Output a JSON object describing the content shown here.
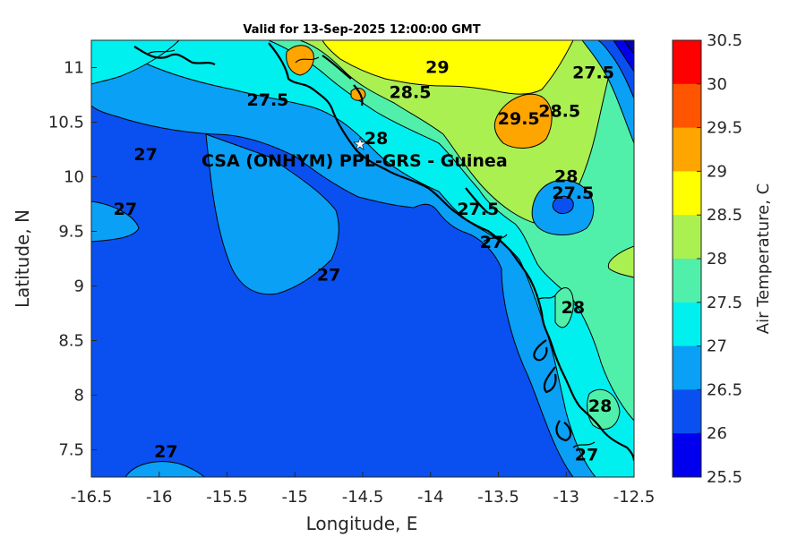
{
  "title": "Valid for 13-Sep-2025 12:00:00 GMT",
  "xlabel": "Longitude, E",
  "ylabel": "Latitude, N",
  "colorbar_label": "Air Temperature, C",
  "station_label": "CSA (ONHYM) PPL-GRS  - Guinea",
  "colors": {
    "c25_5": "#0000AA",
    "c26": "#0000EE",
    "c26_5": "#0A50F0",
    "c27": "#0AA0F5",
    "c27_5": "#00F0F0",
    "c28": "#50F0AA",
    "c28_5": "#AAF050",
    "c29": "#FFFF00",
    "c29_5": "#FFA500",
    "c30": "#FF5500",
    "c30_5": "#FF0000",
    "coast": "#000000"
  },
  "chart_data": {
    "type": "heatmap",
    "xlim": [
      -16.5,
      -12.5
    ],
    "ylim": [
      7.25,
      11.25
    ],
    "x_ticks": [
      "-16.5",
      "-16",
      "-15.5",
      "-15",
      "-14.5",
      "-14",
      "-13.5",
      "-13",
      "-12.5"
    ],
    "y_ticks": [
      "11",
      "10.5",
      "10",
      "9.5",
      "9",
      "8.5",
      "8",
      "7.5"
    ],
    "colorbar_levels": [
      "30.5",
      "30",
      "29.5",
      "29",
      "28.5",
      "28",
      "27.5",
      "27",
      "26.5",
      "26",
      "25.5"
    ],
    "colorbar_colors": [
      "#FF0000",
      "#FF5500",
      "#FFA500",
      "#FFFF00",
      "#AAF050",
      "#50F0AA",
      "#00F0F0",
      "#0AA0F5",
      "#0A50F0",
      "#0000EE",
      "#0000AA"
    ],
    "contour_labels": [
      {
        "text": "27",
        "lon": -16.1,
        "lat": 10.15
      },
      {
        "text": "27",
        "lon": -16.25,
        "lat": 9.65
      },
      {
        "text": "27",
        "lon": -14.75,
        "lat": 9.05
      },
      {
        "text": "27",
        "lon": -15.95,
        "lat": 7.43
      },
      {
        "text": "27.5",
        "lon": -15.2,
        "lat": 10.65
      },
      {
        "text": "28.5",
        "lon": -14.15,
        "lat": 10.72
      },
      {
        "text": "29",
        "lon": -13.95,
        "lat": 10.95
      },
      {
        "text": "29.5",
        "lon": -13.35,
        "lat": 10.48
      },
      {
        "text": "28.5",
        "lon": -13.05,
        "lat": 10.55
      },
      {
        "text": "27.5",
        "lon": -12.8,
        "lat": 10.9
      },
      {
        "text": "28",
        "lon": -13.0,
        "lat": 9.95
      },
      {
        "text": "27.5",
        "lon": -12.95,
        "lat": 9.8
      },
      {
        "text": "27.5",
        "lon": -13.65,
        "lat": 9.65
      },
      {
        "text": "27",
        "lon": -13.55,
        "lat": 9.35
      },
      {
        "text": "28",
        "lon": -14.4,
        "lat": 10.3
      },
      {
        "text": "28",
        "lon": -12.95,
        "lat": 8.75
      },
      {
        "text": "28",
        "lon": -12.75,
        "lat": 7.85
      },
      {
        "text": "27",
        "lon": -12.85,
        "lat": 7.4
      }
    ],
    "station": {
      "lon": -14.52,
      "lat": 10.28
    }
  }
}
